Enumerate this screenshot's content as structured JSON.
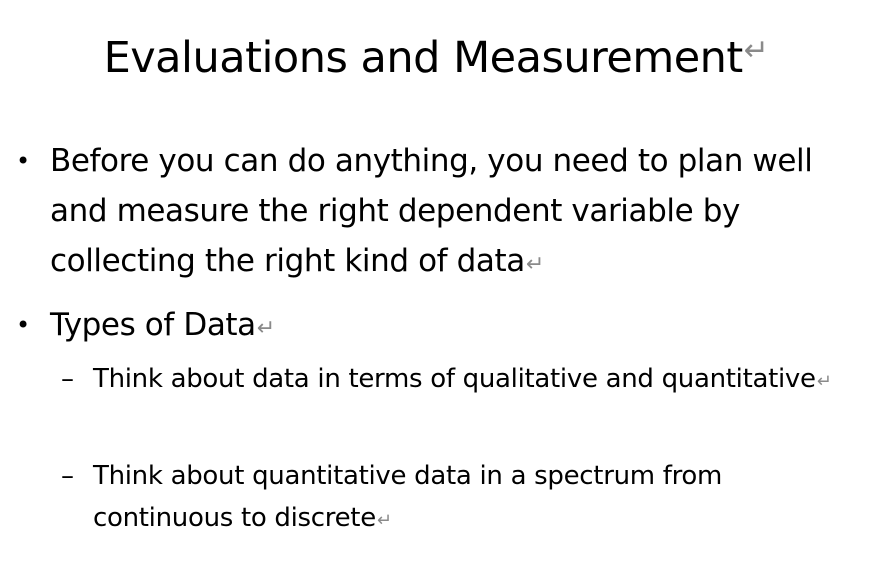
{
  "slide": {
    "title": "Evaluations and Measurement",
    "return_mark": "↵",
    "bullets": [
      {
        "marker": "•",
        "text": "Before you can do anything, you need to plan well and measure the right dependent variable by collecting the right kind of data"
      },
      {
        "marker": "•",
        "text": "Types of Data",
        "sub_bullets": [
          {
            "marker": "–",
            "text": "Think about data in terms of qualitative and quantitative"
          },
          {
            "marker": "–",
            "text": "Think about quantitative data in a spectrum from continuous to discrete"
          }
        ]
      }
    ]
  }
}
